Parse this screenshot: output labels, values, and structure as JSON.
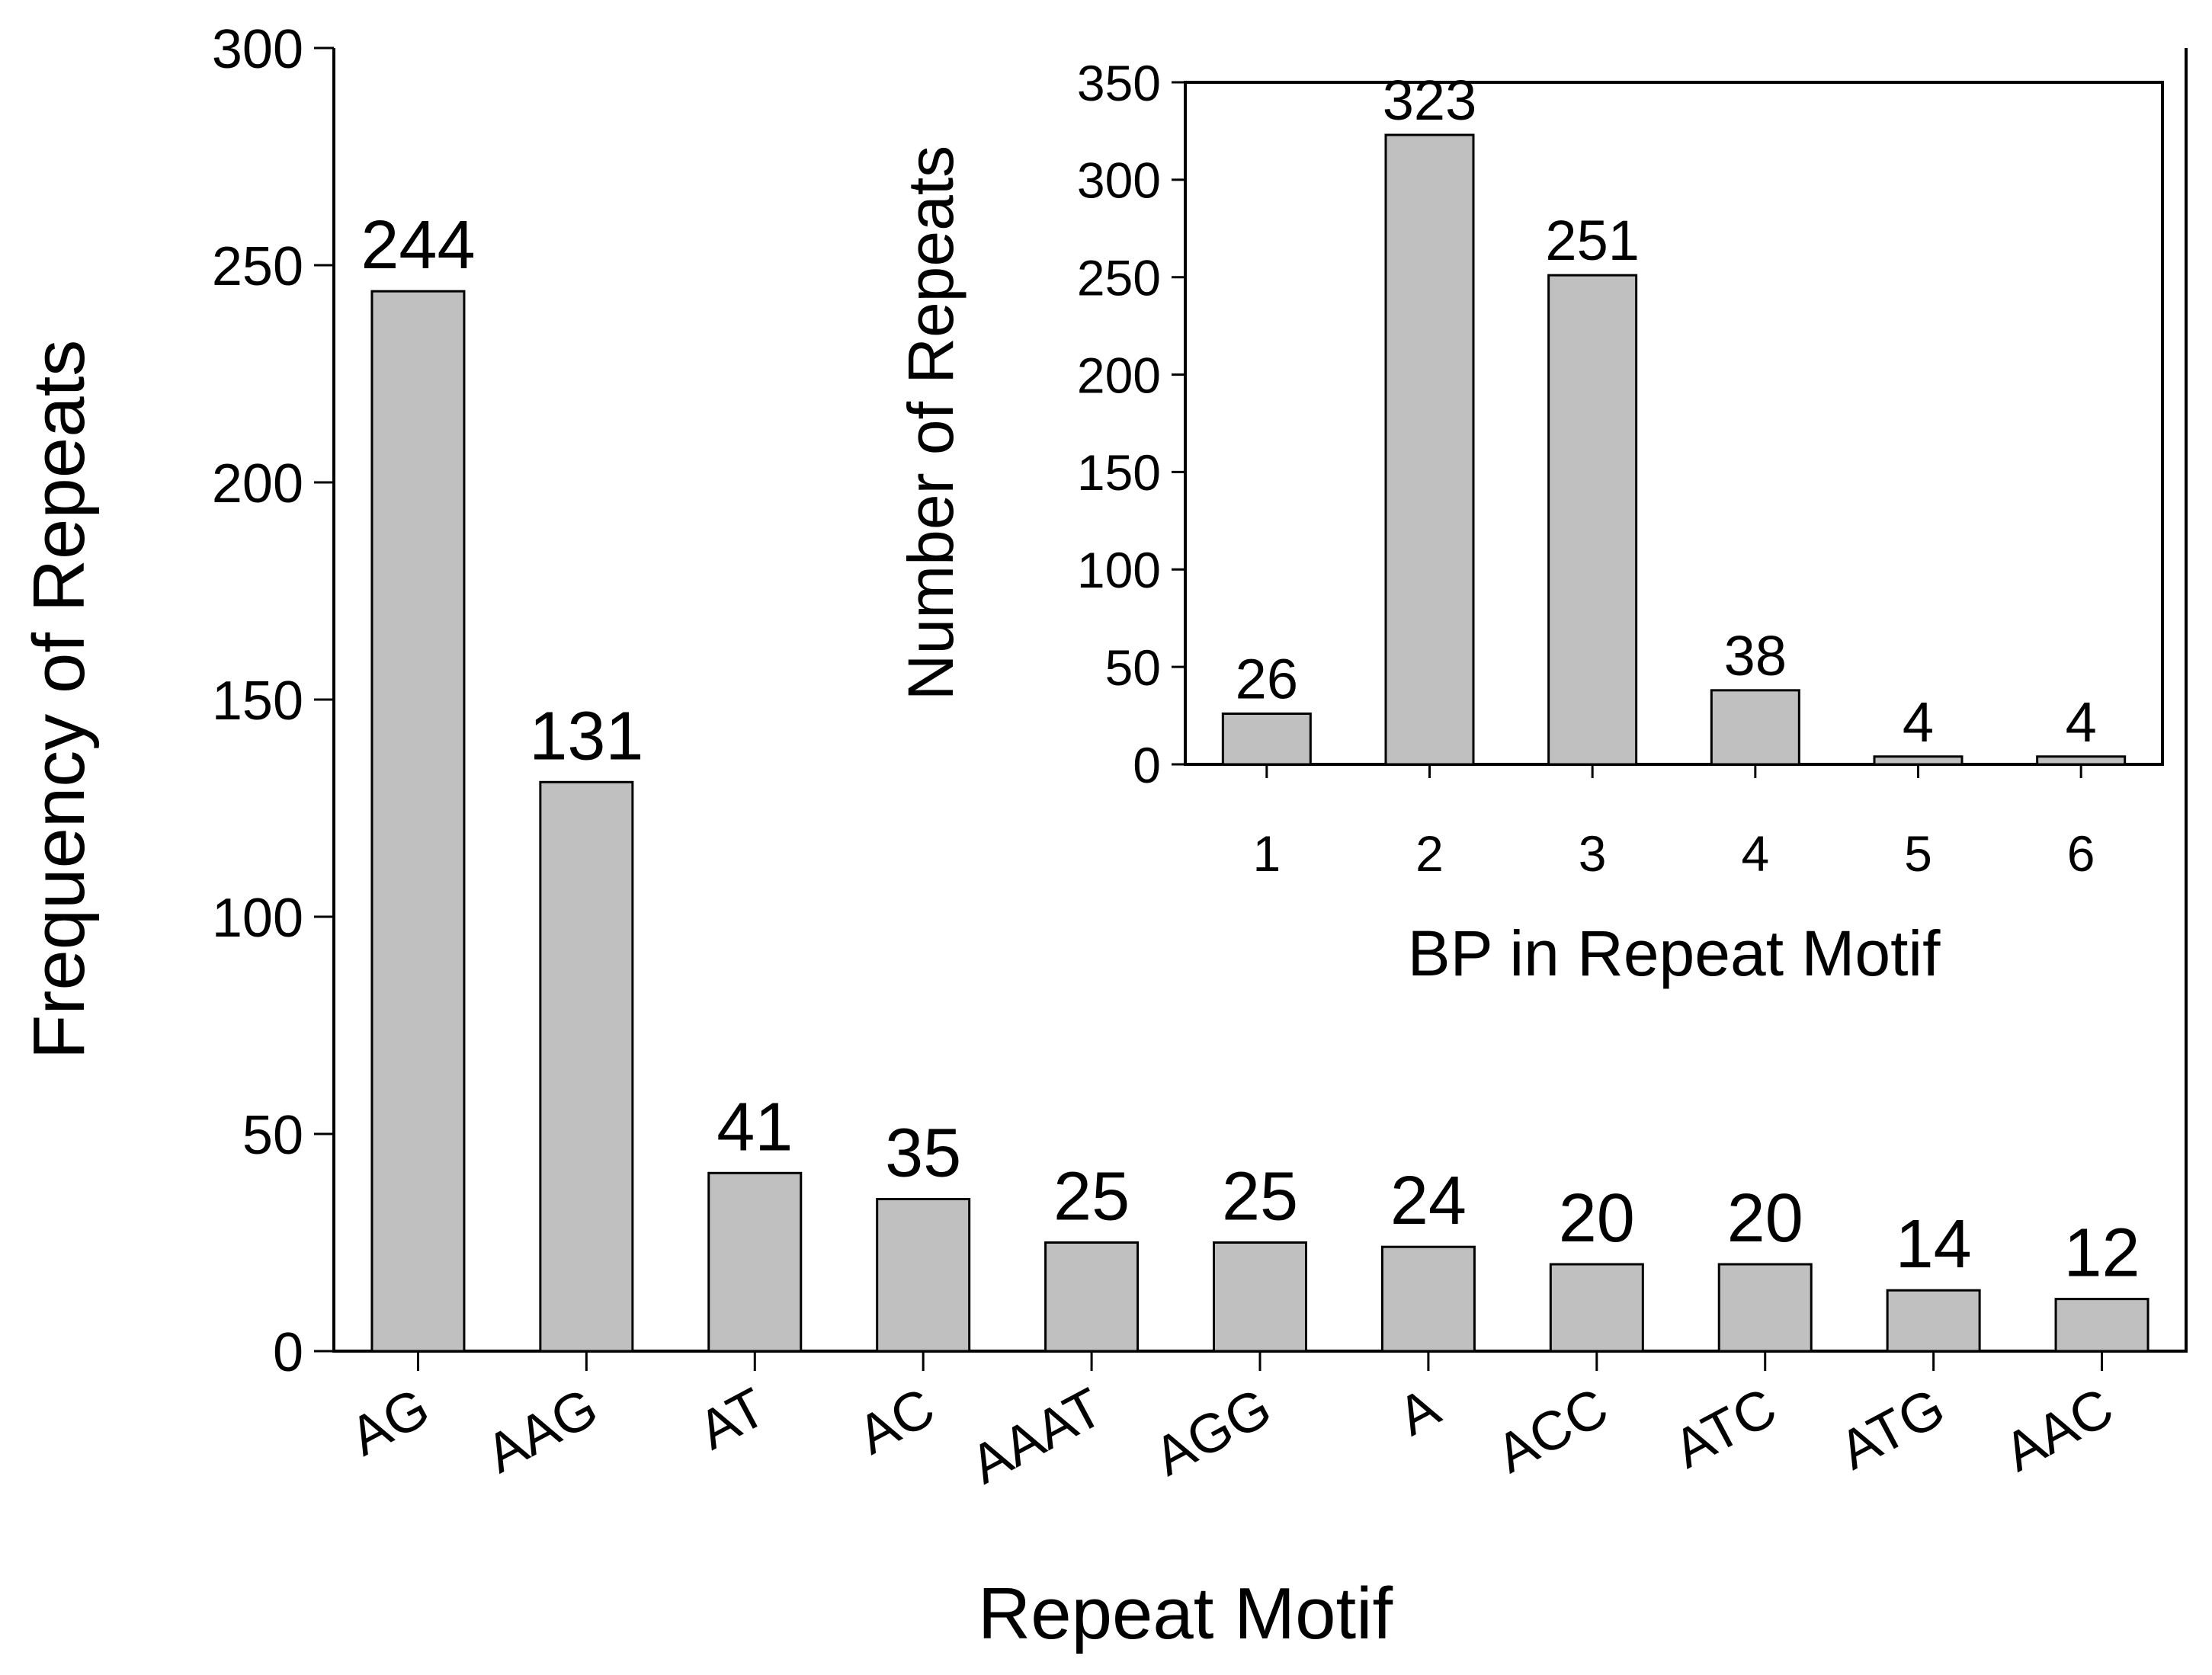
{
  "chart_data": [
    {
      "id": "main",
      "type": "bar",
      "title": "",
      "xlabel": "Repeat Motif",
      "ylabel": "Frequency of Repeats",
      "categories": [
        "AG",
        "AAG",
        "AT",
        "AC",
        "AAAT",
        "AGG",
        "A",
        "ACC",
        "ATC",
        "ATG",
        "AAC"
      ],
      "values": [
        244,
        131,
        41,
        35,
        25,
        25,
        24,
        20,
        20,
        14,
        12
      ],
      "data_labels": [
        "244",
        "131",
        "41",
        "35",
        "25",
        "25",
        "24",
        "20",
        "20",
        "14",
        "12"
      ],
      "ylim": [
        0,
        300
      ],
      "yticks": [
        0,
        50,
        100,
        150,
        200,
        250,
        300
      ],
      "grid": false,
      "bar_color": "#c0c0c0",
      "x_tick_rotation": "rotated"
    },
    {
      "id": "inset",
      "type": "bar",
      "title": "",
      "xlabel": "BP in Repeat Motif",
      "ylabel": "Number of Repeats",
      "categories": [
        "1",
        "2",
        "3",
        "4",
        "5",
        "6"
      ],
      "values": [
        26,
        323,
        251,
        38,
        4,
        4
      ],
      "data_labels": [
        "26",
        "323",
        "251",
        "38",
        "4",
        "4"
      ],
      "ylim": [
        0,
        350
      ],
      "yticks": [
        0,
        50,
        100,
        150,
        200,
        250,
        300,
        350
      ],
      "grid": false,
      "bar_color": "#c0c0c0",
      "placement": "top-right inset"
    }
  ]
}
